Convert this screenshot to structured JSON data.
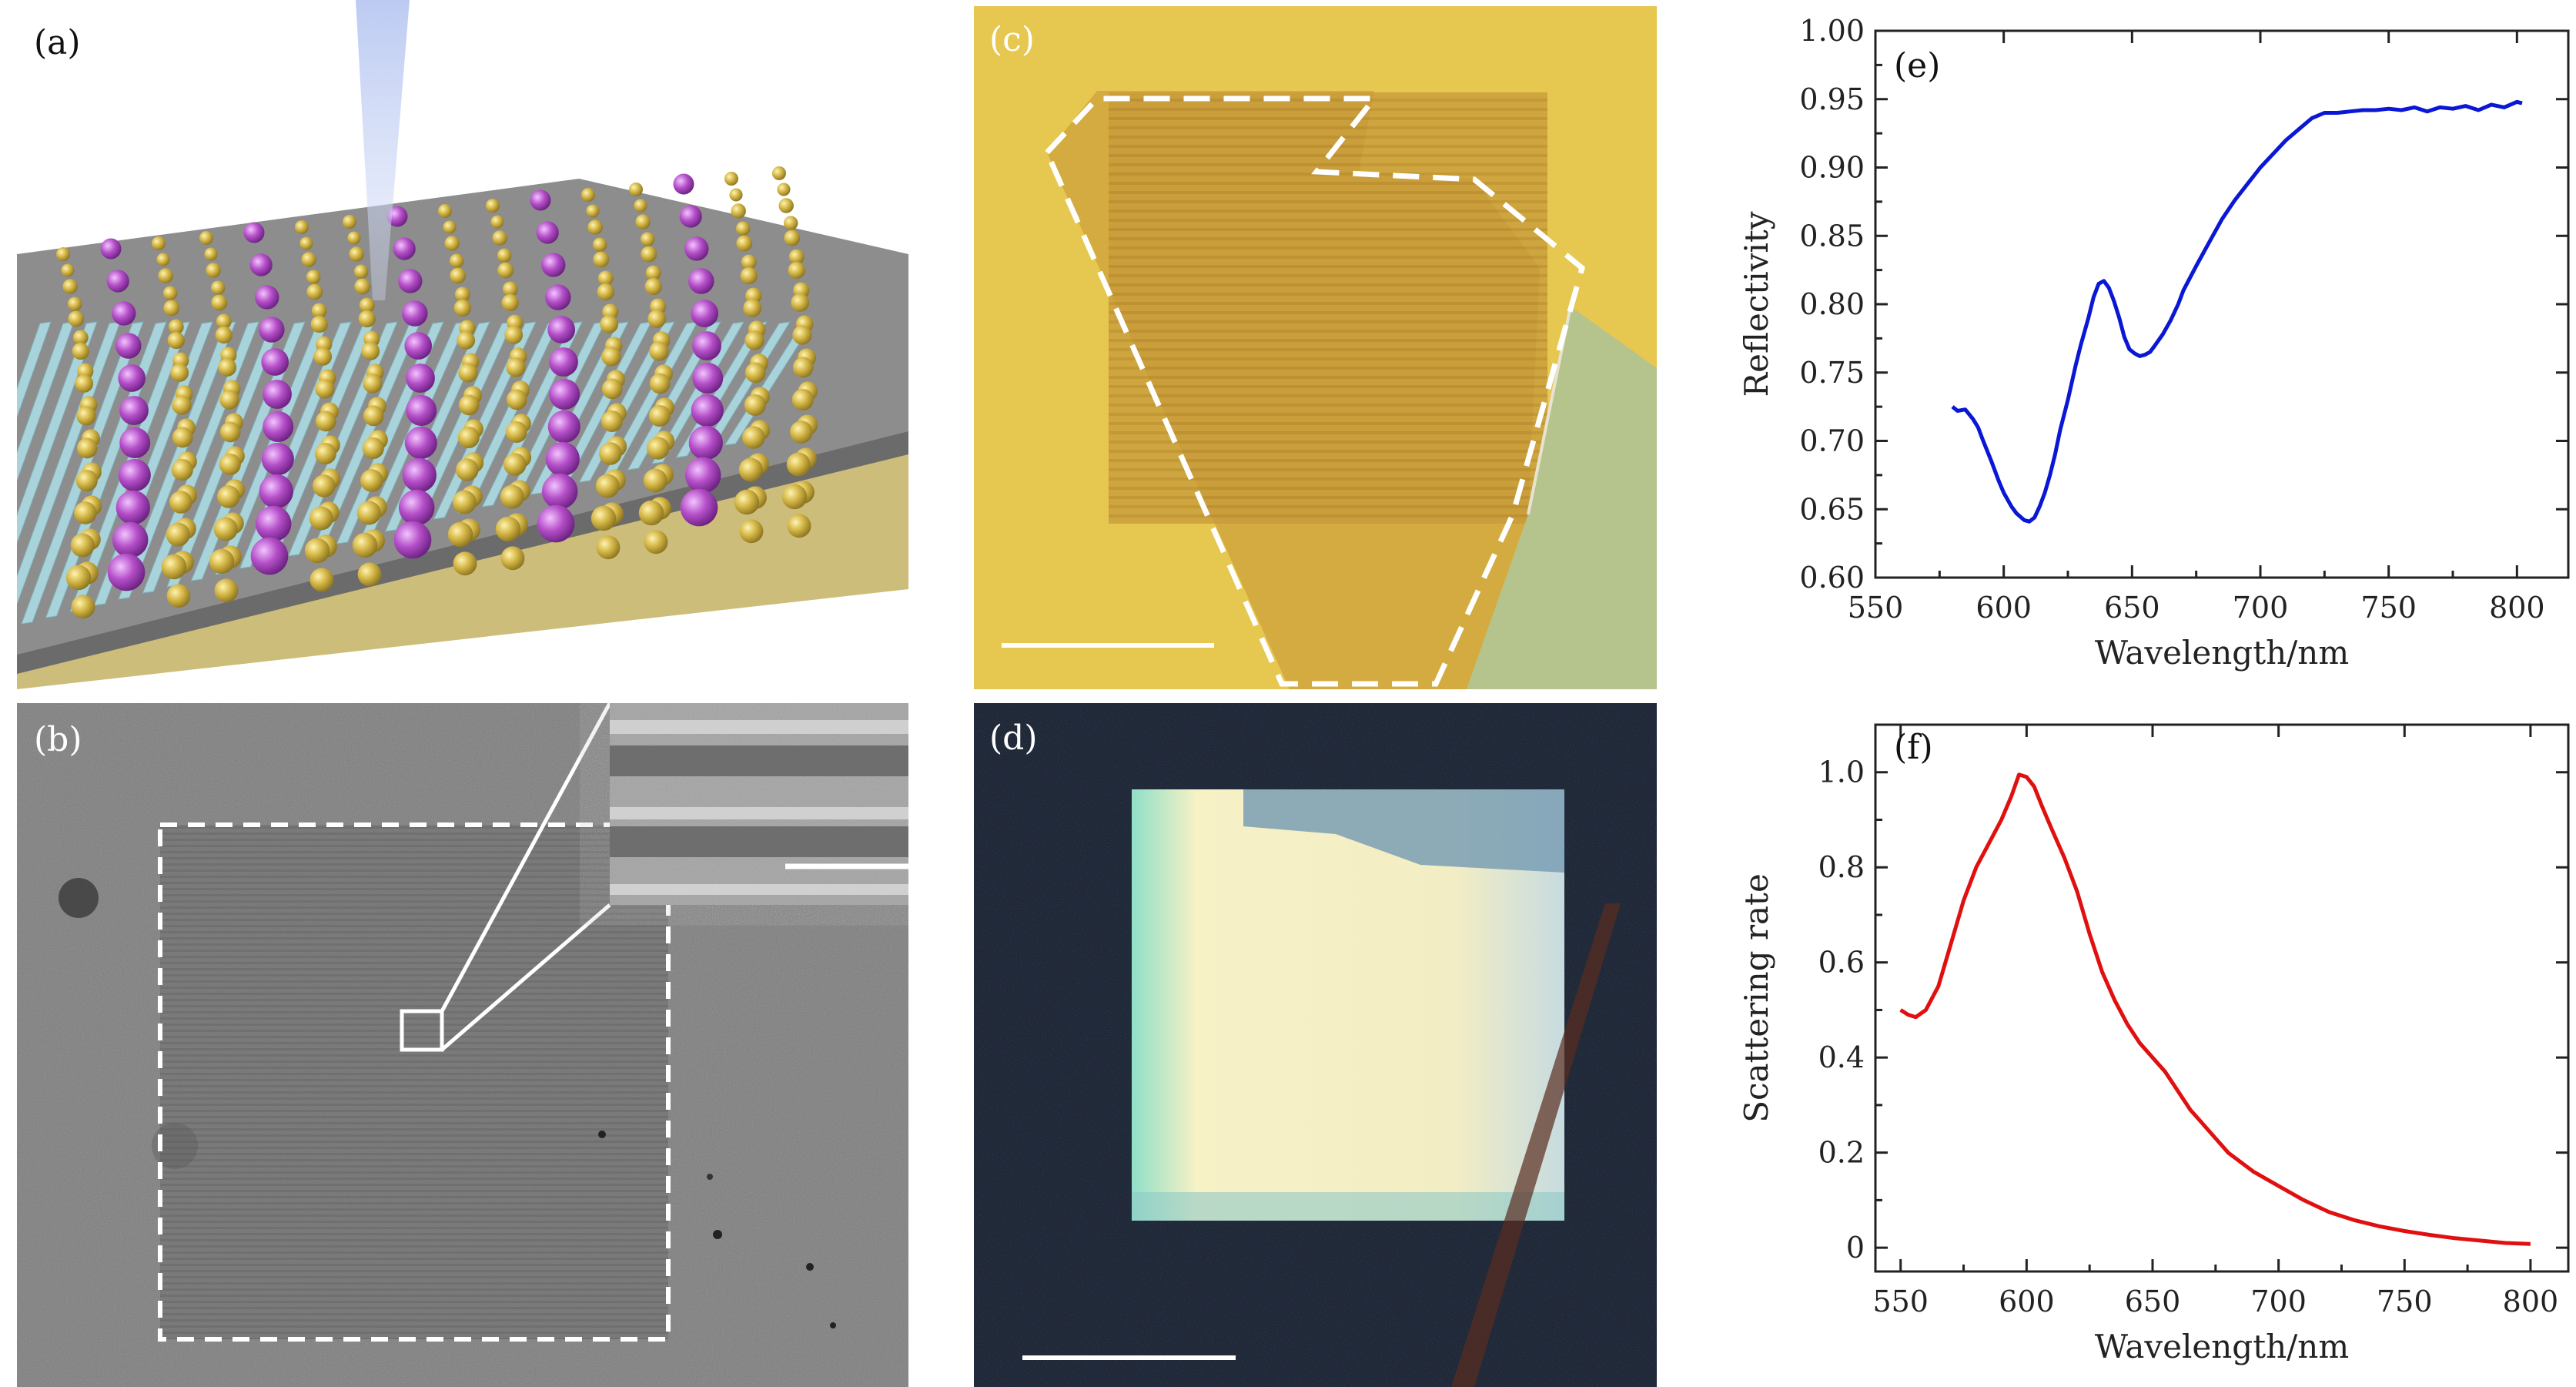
{
  "panels": {
    "a": {
      "label": "(a)"
    },
    "b": {
      "label": "(b)"
    },
    "c": {
      "label": "(c)"
    },
    "d": {
      "label": "(d)"
    },
    "e": {
      "label": "(e)"
    },
    "f": {
      "label": "(f)"
    }
  },
  "colors": {
    "reflectivity_line": "#0a17d4",
    "scattering_line": "#e01010",
    "gold_substrate": "#e6c64a",
    "sem_gray": "#747474",
    "dark_field": "#0b1426",
    "grating_bars": "#a8d3da",
    "atom_gold": "#c9ad3c",
    "atom_purple": "#b04bc4"
  },
  "icons": {
    "laser_beam": "laser-beam-icon",
    "scale_bar": "scale-bar-icon"
  },
  "chart_data": [
    {
      "id": "e",
      "type": "line",
      "xlabel": "Wavelength/nm",
      "ylabel": "Reflectivity",
      "xlim": [
        550,
        820
      ],
      "ylim": [
        0.6,
        1.0
      ],
      "xticks": [
        550,
        600,
        650,
        700,
        750,
        800
      ],
      "yticks": [
        0.6,
        0.65,
        0.7,
        0.75,
        0.8,
        0.85,
        0.9,
        0.95,
        1.0
      ],
      "xtick_labels": [
        "550",
        "600",
        "650",
        "700",
        "750",
        "800"
      ],
      "ytick_labels": [
        "0.60",
        "0.65",
        "0.70",
        "0.75",
        "0.80",
        "0.85",
        "0.90",
        "0.95",
        "1.00"
      ],
      "series": [
        {
          "x": [
            580,
            582,
            585,
            588,
            590,
            592,
            595,
            598,
            600,
            603,
            605,
            608,
            610,
            612,
            614,
            616,
            618,
            620,
            622,
            625,
            628,
            630,
            633,
            635,
            637,
            639,
            641,
            643,
            645,
            647,
            649,
            651,
            653,
            655,
            657,
            659,
            662,
            665,
            668,
            670,
            675,
            680,
            685,
            690,
            695,
            700,
            705,
            710,
            715,
            720,
            725,
            730,
            735,
            740,
            745,
            750,
            755,
            760,
            765,
            770,
            775,
            780,
            785,
            790,
            795,
            800,
            802
          ],
          "y": [
            0.725,
            0.722,
            0.723,
            0.716,
            0.71,
            0.7,
            0.686,
            0.671,
            0.662,
            0.652,
            0.647,
            0.642,
            0.641,
            0.644,
            0.652,
            0.662,
            0.675,
            0.69,
            0.708,
            0.73,
            0.755,
            0.77,
            0.79,
            0.805,
            0.815,
            0.817,
            0.812,
            0.802,
            0.79,
            0.776,
            0.767,
            0.764,
            0.762,
            0.763,
            0.765,
            0.77,
            0.778,
            0.788,
            0.8,
            0.81,
            0.828,
            0.845,
            0.862,
            0.876,
            0.888,
            0.9,
            0.91,
            0.92,
            0.928,
            0.936,
            0.94,
            0.94,
            0.941,
            0.942,
            0.942,
            0.943,
            0.942,
            0.944,
            0.941,
            0.944,
            0.943,
            0.945,
            0.942,
            0.946,
            0.944,
            0.948,
            0.947
          ]
        }
      ]
    },
    {
      "id": "f",
      "type": "line",
      "xlabel": "Wavelength/nm",
      "ylabel": "Scattering rate",
      "xlim": [
        540,
        815
      ],
      "ylim": [
        -0.05,
        1.1
      ],
      "xticks": [
        550,
        600,
        650,
        700,
        750,
        800
      ],
      "yticks": [
        0,
        0.2,
        0.4,
        0.6,
        0.8,
        1.0
      ],
      "xtick_labels": [
        "550",
        "600",
        "650",
        "700",
        "750",
        "800"
      ],
      "ytick_labels": [
        "0",
        "0.2",
        "0.4",
        "0.6",
        "0.8",
        "1.0"
      ],
      "series": [
        {
          "x": [
            550,
            553,
            556,
            560,
            565,
            570,
            575,
            580,
            585,
            590,
            594,
            597,
            600,
            603,
            606,
            610,
            615,
            620,
            625,
            630,
            635,
            640,
            645,
            650,
            655,
            660,
            665,
            670,
            675,
            680,
            690,
            700,
            710,
            720,
            730,
            740,
            750,
            760,
            770,
            780,
            790,
            800
          ],
          "y": [
            0.5,
            0.49,
            0.485,
            0.5,
            0.55,
            0.64,
            0.73,
            0.8,
            0.85,
            0.9,
            0.95,
            0.995,
            0.99,
            0.97,
            0.93,
            0.88,
            0.82,
            0.75,
            0.66,
            0.58,
            0.52,
            0.47,
            0.43,
            0.4,
            0.37,
            0.33,
            0.29,
            0.26,
            0.23,
            0.2,
            0.16,
            0.13,
            0.1,
            0.075,
            0.058,
            0.045,
            0.035,
            0.027,
            0.02,
            0.015,
            0.01,
            0.008
          ]
        }
      ]
    }
  ]
}
